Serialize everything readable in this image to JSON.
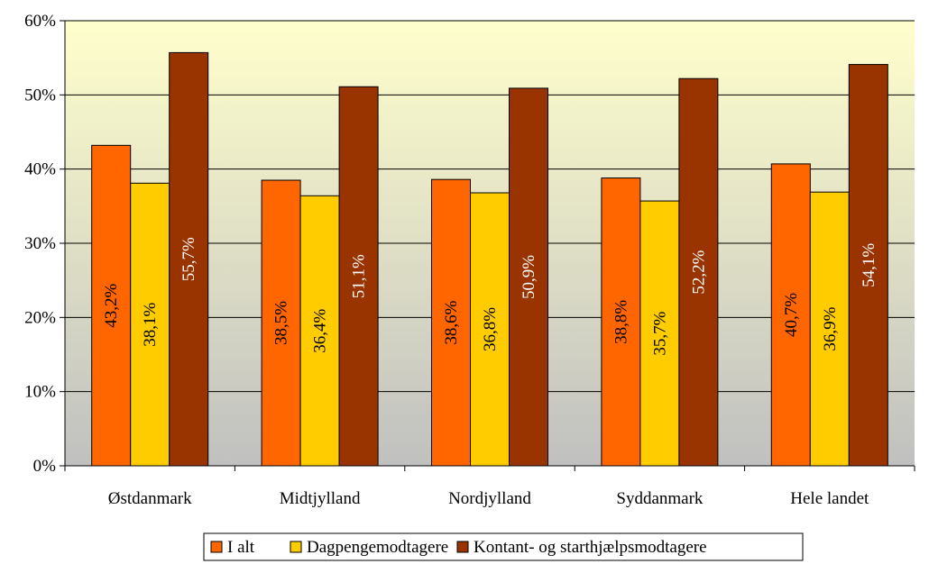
{
  "chart_data": {
    "type": "bar",
    "categories": [
      "Østdanmark",
      "Midtjylland",
      "Nordjylland",
      "Syddanmark",
      "Hele landet"
    ],
    "series": [
      {
        "name": "I alt",
        "values": [
          43.2,
          38.5,
          38.6,
          38.8,
          40.7
        ],
        "labels": [
          "43,2%",
          "38,5%",
          "38,6%",
          "38,8%",
          "40,7%"
        ],
        "color": "#ff6600",
        "label_color": "#000000"
      },
      {
        "name": "Dagpengemodtagere",
        "values": [
          38.1,
          36.4,
          36.8,
          35.7,
          36.9
        ],
        "labels": [
          "38,1%",
          "36,4%",
          "36,8%",
          "35,7%",
          "36,9%"
        ],
        "color": "#ffcc00",
        "label_color": "#000000"
      },
      {
        "name": "Kontant- og starthjælpsmodtagere",
        "values": [
          55.7,
          51.1,
          50.9,
          52.2,
          54.1
        ],
        "labels": [
          "55,7%",
          "51,1%",
          "50,9%",
          "52,2%",
          "54,1%"
        ],
        "color": "#993300",
        "label_color": "#ffffff"
      }
    ],
    "y_ticks": [
      {
        "value": 0,
        "label": "0%"
      },
      {
        "value": 10,
        "label": "10%"
      },
      {
        "value": 20,
        "label": "20%"
      },
      {
        "value": 30,
        "label": "30%"
      },
      {
        "value": 40,
        "label": "40%"
      },
      {
        "value": 50,
        "label": "50%"
      },
      {
        "value": 60,
        "label": "60%"
      }
    ],
    "ylim": [
      0,
      60
    ],
    "grid": true,
    "legend_position": "bottom",
    "plot_gradient": {
      "top": "#ffffcc",
      "bottom": "#c0c0c0"
    }
  }
}
